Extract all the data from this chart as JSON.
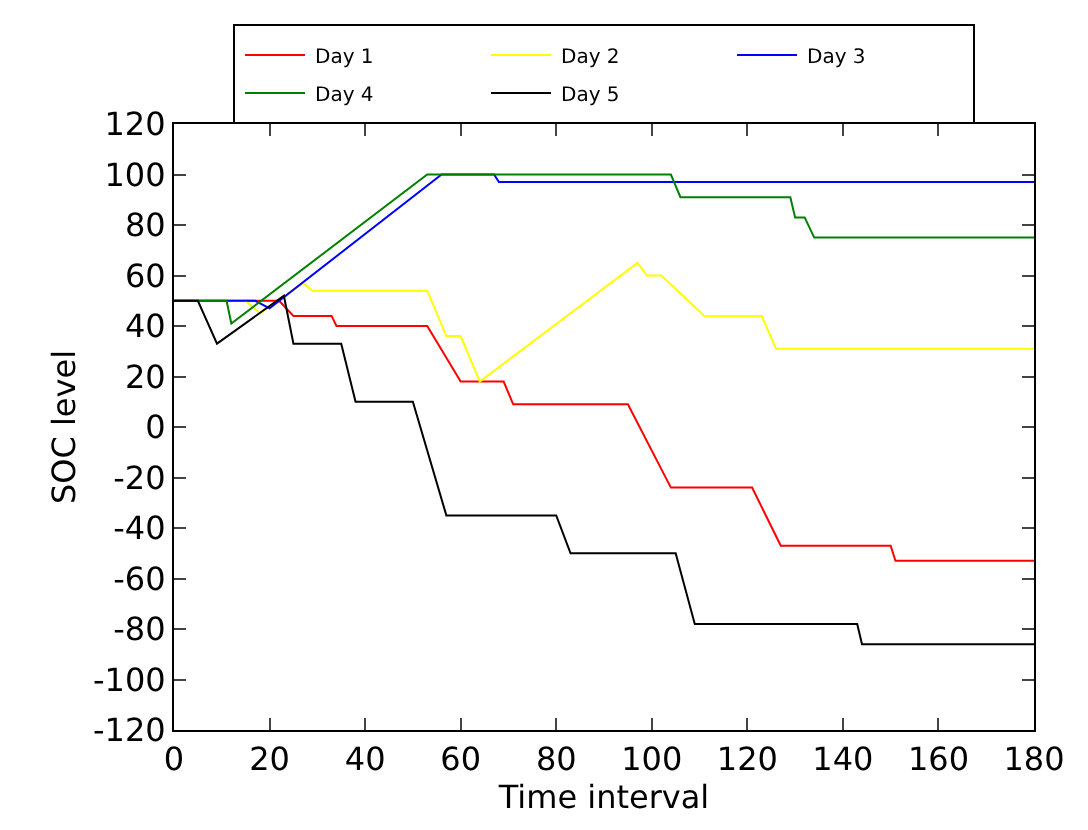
{
  "chart_data": {
    "type": "line",
    "xlabel": "Time interval",
    "ylabel": "SOC level",
    "xlim": [
      0,
      180
    ],
    "xticks": [
      0,
      20,
      40,
      60,
      80,
      100,
      120,
      140,
      160,
      180
    ],
    "ylim": [
      -120,
      120
    ],
    "yticks": [
      -120,
      -100,
      -80,
      -60,
      -40,
      -20,
      0,
      20,
      40,
      60,
      80,
      100,
      120
    ],
    "legend": "top",
    "marker": "none",
    "line_style": "solid",
    "series": [
      {
        "name": "Day 1",
        "color": "#ff0000",
        "x": [
          0,
          22,
          25,
          33,
          34,
          53,
          60,
          69,
          71,
          95,
          104,
          121,
          127,
          150,
          151,
          180
        ],
        "values": [
          50,
          50,
          44,
          44,
          40,
          40,
          18,
          18,
          9,
          9,
          -24,
          -24,
          -47,
          -47,
          -53,
          -53
        ]
      },
      {
        "name": "Day 2",
        "color": "#ffff00",
        "x": [
          0,
          15,
          18,
          27,
          29,
          53,
          57,
          60,
          64,
          97,
          99,
          102,
          111,
          123,
          126,
          180
        ],
        "values": [
          50,
          50,
          45,
          57,
          54,
          54,
          36,
          36,
          18,
          65,
          60,
          60,
          44,
          44,
          31,
          31
        ]
      },
      {
        "name": "Day 3",
        "color": "#0000ff",
        "x": [
          0,
          17,
          20,
          56,
          67,
          68,
          180
        ],
        "values": [
          50,
          50,
          47,
          100,
          100,
          97,
          97
        ]
      },
      {
        "name": "Day 4",
        "color": "#008000",
        "x": [
          0,
          11,
          12,
          53,
          104,
          106,
          129,
          130,
          132,
          134,
          180
        ],
        "values": [
          50,
          50,
          41,
          100,
          100,
          91,
          91,
          83,
          83,
          75,
          75
        ]
      },
      {
        "name": "Day 5",
        "color": "#000000",
        "x": [
          0,
          5,
          9,
          23,
          25,
          35,
          38,
          50,
          57,
          80,
          83,
          105,
          109,
          143,
          144,
          180
        ],
        "values": [
          50,
          50,
          33,
          52,
          33,
          33,
          10,
          10,
          -35,
          -35,
          -50,
          -50,
          -78,
          -78,
          -86,
          -86
        ]
      }
    ]
  }
}
